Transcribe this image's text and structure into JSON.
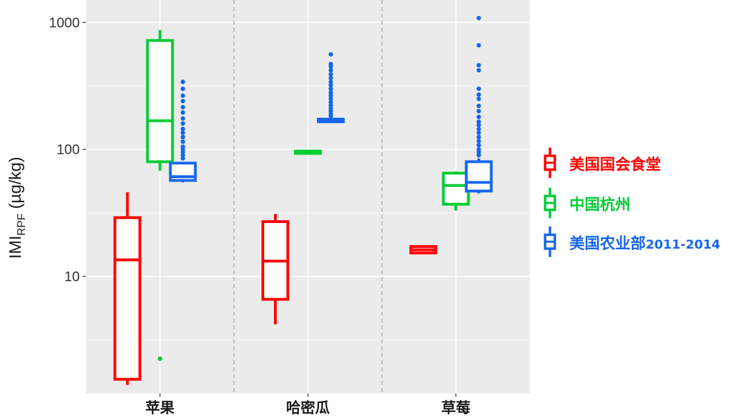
{
  "chart_data": {
    "type": "boxplot",
    "ylabel": "IMI",
    "ylabel_subscript": "RPF",
    "ylabel_unit": " (µg/kg)",
    "yscale": "log",
    "ylim": [
      1.2,
      1500
    ],
    "yticks": [
      {
        "value": 10,
        "label": "10"
      },
      {
        "value": 100,
        "label": "100"
      },
      {
        "value": 1000,
        "label": "1000"
      }
    ],
    "minor_yticks": [
      3.16,
      31.6,
      316
    ],
    "categories": [
      "苹果",
      "哈密瓜",
      "草莓"
    ],
    "legend_position": "right",
    "series": [
      {
        "name": "美国国会食堂",
        "color": "#ff0000",
        "boxes": [
          {
            "category": "苹果",
            "q1": 1.55,
            "median": 13.5,
            "q3": 29,
            "whisker_low": 1.4,
            "whisker_high": 46,
            "outliers": []
          },
          {
            "category": "哈密瓜",
            "q1": 6.6,
            "median": 13.2,
            "q3": 27,
            "whisker_low": 4.2,
            "whisker_high": 31,
            "outliers": []
          },
          {
            "category": "草莓",
            "q1": 15.3,
            "median": 16.2,
            "q3": 17.2,
            "whisker_low": 15.3,
            "whisker_high": 17.2,
            "outliers": []
          }
        ]
      },
      {
        "name": "中国杭州",
        "color": "#00cc33",
        "boxes": [
          {
            "category": "苹果",
            "q1": 80,
            "median": 168,
            "q3": 720,
            "whisker_low": 68,
            "whisker_high": 870,
            "outliers": [
              2.25
            ]
          },
          {
            "category": "哈密瓜",
            "q1": 93,
            "median": 95,
            "q3": 97,
            "whisker_low": 93,
            "whisker_high": 97,
            "outliers": []
          },
          {
            "category": "草莓",
            "q1": 37,
            "median": 52,
            "q3": 65,
            "whisker_low": 33,
            "whisker_high": 67,
            "outliers": []
          }
        ]
      },
      {
        "name": "美国农业部",
        "name_suffix": "2011-2014",
        "color": "#1666ee",
        "boxes": [
          {
            "category": "苹果",
            "q1": 57,
            "median": 61,
            "q3": 78,
            "whisker_low": 55,
            "whisker_high": 80,
            "outliers": [
              85,
              90,
              95,
              100,
              105,
              115,
              125,
              135,
              145,
              160,
              175,
              195,
              215,
              240,
              265,
              300,
              340
            ]
          },
          {
            "category": "哈密瓜",
            "q1": 165,
            "median": 169,
            "q3": 173,
            "whisker_low": 162,
            "whisker_high": 177,
            "outliers": [
              182,
              190,
              200,
              210,
              222,
              235,
              250,
              265,
              280,
              300,
              320,
              340,
              365,
              390,
              420,
              450,
              470,
              560
            ]
          },
          {
            "category": "草莓",
            "q1": 47,
            "median": 55,
            "q3": 80,
            "whisker_low": 45,
            "whisker_high": 85,
            "outliers": [
              90,
              95,
              100,
              108,
              116,
              125,
              135,
              145,
              155,
              165,
              180,
              200,
              220,
              250,
              270,
              300,
              420,
              460,
              660,
              1080
            ]
          }
        ]
      }
    ]
  }
}
